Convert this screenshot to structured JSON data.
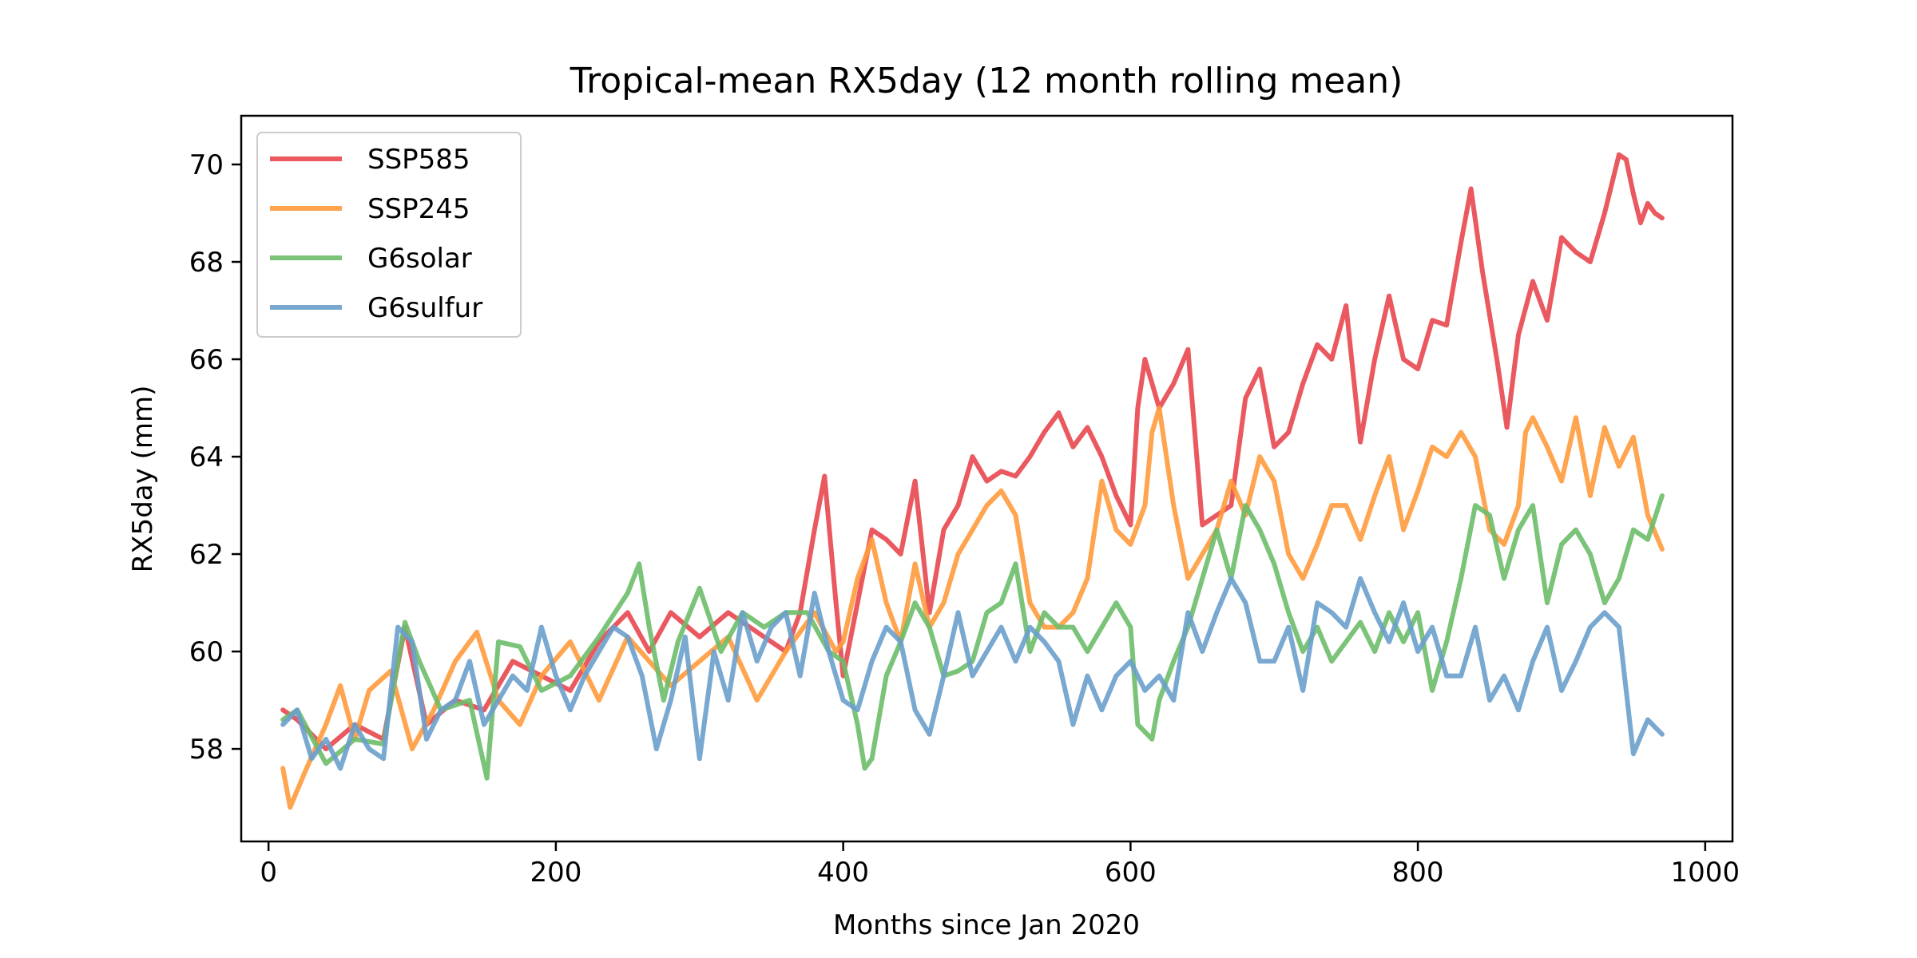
{
  "chart_data": {
    "type": "line",
    "title": "Tropical-mean RX5day (12 month rolling mean)",
    "xlabel": "Months since Jan 2020",
    "ylabel": "RX5day (mm)",
    "xlim": [
      -19,
      1019
    ],
    "ylim": [
      56.1,
      71.0
    ],
    "xticks": [
      0,
      200,
      400,
      600,
      800,
      1000
    ],
    "yticks": [
      58,
      60,
      62,
      64,
      66,
      68,
      70
    ],
    "grid": false,
    "legend_position": "top-left",
    "series": [
      {
        "name": "SSP585",
        "color": "#e8474f",
        "x": [
          10,
          20,
          40,
          60,
          80,
          95,
          110,
          130,
          150,
          170,
          190,
          210,
          230,
          250,
          265,
          280,
          300,
          320,
          340,
          360,
          370,
          380,
          387,
          395,
          400,
          410,
          420,
          430,
          440,
          450,
          460,
          470,
          480,
          490,
          500,
          510,
          520,
          530,
          540,
          550,
          560,
          570,
          580,
          590,
          600,
          605,
          610,
          620,
          630,
          640,
          650,
          660,
          670,
          680,
          690,
          700,
          710,
          720,
          730,
          740,
          750,
          760,
          770,
          780,
          790,
          800,
          810,
          820,
          830,
          837,
          845,
          855,
          862,
          870,
          880,
          890,
          900,
          910,
          920,
          930,
          940,
          945,
          950,
          955,
          960,
          965,
          970
        ],
        "values": [
          58.8,
          58.6,
          58.0,
          58.5,
          58.2,
          60.5,
          58.5,
          59.0,
          58.8,
          59.8,
          59.5,
          59.2,
          60.2,
          60.8,
          60.0,
          60.8,
          60.3,
          60.8,
          60.4,
          60.0,
          60.8,
          62.5,
          63.6,
          61.0,
          59.5,
          61.0,
          62.5,
          62.3,
          62.0,
          63.5,
          60.8,
          62.5,
          63.0,
          64.0,
          63.5,
          63.7,
          63.6,
          64.0,
          64.5,
          64.9,
          64.2,
          64.6,
          64.0,
          63.2,
          62.6,
          65.0,
          66.0,
          65.0,
          65.5,
          66.2,
          62.6,
          62.8,
          63.0,
          65.2,
          65.8,
          64.2,
          64.5,
          65.5,
          66.3,
          66.0,
          67.1,
          64.3,
          66.0,
          67.3,
          66.0,
          65.8,
          66.8,
          66.7,
          68.4,
          69.5,
          67.8,
          66.0,
          64.6,
          66.5,
          67.6,
          66.8,
          68.5,
          68.2,
          68.0,
          69.0,
          70.2,
          70.1,
          69.4,
          68.8,
          69.2,
          69.0,
          68.9
        ]
      },
      {
        "name": "SSP245",
        "color": "#ff9a3c",
        "x": [
          10,
          15,
          25,
          40,
          50,
          60,
          70,
          85,
          100,
          115,
          130,
          145,
          160,
          175,
          190,
          210,
          230,
          250,
          265,
          280,
          300,
          320,
          340,
          360,
          380,
          395,
          400,
          410,
          420,
          430,
          440,
          450,
          460,
          470,
          480,
          490,
          500,
          510,
          520,
          530,
          540,
          550,
          560,
          570,
          580,
          590,
          600,
          610,
          615,
          620,
          630,
          640,
          650,
          660,
          670,
          680,
          690,
          700,
          710,
          720,
          730,
          740,
          750,
          760,
          770,
          780,
          790,
          800,
          810,
          820,
          830,
          840,
          850,
          860,
          870,
          875,
          880,
          890,
          900,
          910,
          920,
          930,
          940,
          950,
          960,
          970
        ],
        "values": [
          57.6,
          56.8,
          57.5,
          58.5,
          59.3,
          58.2,
          59.2,
          59.6,
          58.0,
          58.8,
          59.8,
          60.4,
          59.0,
          58.5,
          59.5,
          60.2,
          59.0,
          60.3,
          59.8,
          59.3,
          59.8,
          60.3,
          59.0,
          60.0,
          60.8,
          60.0,
          60.2,
          61.5,
          62.3,
          61.0,
          60.2,
          61.8,
          60.5,
          61.0,
          62.0,
          62.5,
          63.0,
          63.3,
          62.8,
          61.0,
          60.5,
          60.5,
          60.8,
          61.5,
          63.5,
          62.5,
          62.2,
          63.0,
          64.5,
          65.0,
          63.0,
          61.5,
          62.0,
          62.5,
          63.5,
          62.8,
          64.0,
          63.5,
          62.0,
          61.5,
          62.2,
          63.0,
          63.0,
          62.3,
          63.2,
          64.0,
          62.5,
          63.3,
          64.2,
          64.0,
          64.5,
          64.0,
          62.5,
          62.2,
          63.0,
          64.5,
          64.8,
          64.2,
          63.5,
          64.8,
          63.2,
          64.6,
          63.8,
          64.4,
          62.8,
          62.1
        ]
      },
      {
        "name": "G6solar",
        "color": "#6dbd6a",
        "x": [
          10,
          20,
          40,
          60,
          80,
          95,
          105,
          120,
          140,
          152,
          160,
          175,
          190,
          210,
          230,
          250,
          258,
          265,
          275,
          285,
          300,
          315,
          330,
          345,
          360,
          375,
          390,
          400,
          410,
          415,
          420,
          430,
          440,
          450,
          460,
          470,
          480,
          490,
          500,
          510,
          520,
          530,
          540,
          550,
          560,
          570,
          580,
          590,
          600,
          605,
          615,
          620,
          630,
          640,
          650,
          660,
          670,
          680,
          690,
          700,
          710,
          720,
          730,
          740,
          750,
          760,
          770,
          780,
          790,
          800,
          810,
          820,
          830,
          840,
          850,
          860,
          870,
          880,
          890,
          900,
          910,
          920,
          930,
          940,
          950,
          960,
          970
        ],
        "values": [
          58.6,
          58.8,
          57.7,
          58.2,
          58.1,
          60.6,
          59.8,
          58.8,
          59.0,
          57.4,
          60.2,
          60.1,
          59.2,
          59.5,
          60.3,
          61.2,
          61.8,
          60.5,
          59.0,
          60.2,
          61.3,
          60.0,
          60.8,
          60.5,
          60.8,
          60.8,
          60.0,
          59.8,
          58.5,
          57.6,
          57.8,
          59.5,
          60.2,
          61.0,
          60.5,
          59.5,
          59.6,
          59.8,
          60.8,
          61.0,
          61.8,
          60.0,
          60.8,
          60.5,
          60.5,
          60.0,
          60.5,
          61.0,
          60.5,
          58.5,
          58.2,
          59.0,
          59.8,
          60.5,
          61.5,
          62.5,
          61.5,
          63.0,
          62.5,
          61.8,
          60.8,
          60.0,
          60.5,
          59.8,
          60.2,
          60.6,
          60.0,
          60.8,
          60.2,
          60.8,
          59.2,
          60.2,
          61.5,
          63.0,
          62.8,
          61.5,
          62.5,
          63.0,
          61.0,
          62.2,
          62.5,
          62.0,
          61.0,
          61.5,
          62.5,
          62.3,
          63.2
        ]
      },
      {
        "name": "G6sulfur",
        "color": "#6a9fcb",
        "x": [
          10,
          20,
          30,
          40,
          50,
          60,
          70,
          80,
          90,
          100,
          110,
          120,
          130,
          140,
          150,
          160,
          170,
          180,
          190,
          200,
          210,
          220,
          230,
          240,
          250,
          260,
          270,
          280,
          290,
          300,
          310,
          320,
          330,
          340,
          350,
          360,
          370,
          380,
          390,
          400,
          410,
          420,
          430,
          440,
          450,
          460,
          470,
          480,
          490,
          500,
          510,
          520,
          530,
          540,
          550,
          560,
          570,
          580,
          590,
          600,
          610,
          620,
          630,
          640,
          650,
          660,
          670,
          680,
          690,
          700,
          710,
          720,
          730,
          740,
          750,
          760,
          770,
          780,
          790,
          800,
          810,
          820,
          830,
          840,
          850,
          860,
          870,
          880,
          890,
          900,
          910,
          920,
          930,
          940,
          950,
          960,
          970
        ],
        "values": [
          58.5,
          58.8,
          57.8,
          58.2,
          57.6,
          58.5,
          58.0,
          57.8,
          60.5,
          60.2,
          58.2,
          58.8,
          59.0,
          59.8,
          58.5,
          59.0,
          59.5,
          59.2,
          60.5,
          59.5,
          58.8,
          59.5,
          60.0,
          60.5,
          60.3,
          59.5,
          58.0,
          59.0,
          60.3,
          57.8,
          60.0,
          59.0,
          60.8,
          59.8,
          60.5,
          60.8,
          59.5,
          61.2,
          60.0,
          59.0,
          58.8,
          59.8,
          60.5,
          60.2,
          58.8,
          58.3,
          59.5,
          60.8,
          59.5,
          60.0,
          60.5,
          59.8,
          60.5,
          60.2,
          59.8,
          58.5,
          59.5,
          58.8,
          59.5,
          59.8,
          59.2,
          59.5,
          59.0,
          60.8,
          60.0,
          60.8,
          61.5,
          61.0,
          59.8,
          59.8,
          60.5,
          59.2,
          61.0,
          60.8,
          60.5,
          61.5,
          60.8,
          60.2,
          61.0,
          60.0,
          60.5,
          59.5,
          59.5,
          60.5,
          59.0,
          59.5,
          58.8,
          59.8,
          60.5,
          59.2,
          59.8,
          60.5,
          60.8,
          60.5,
          57.9,
          58.6,
          58.3
        ]
      }
    ]
  }
}
